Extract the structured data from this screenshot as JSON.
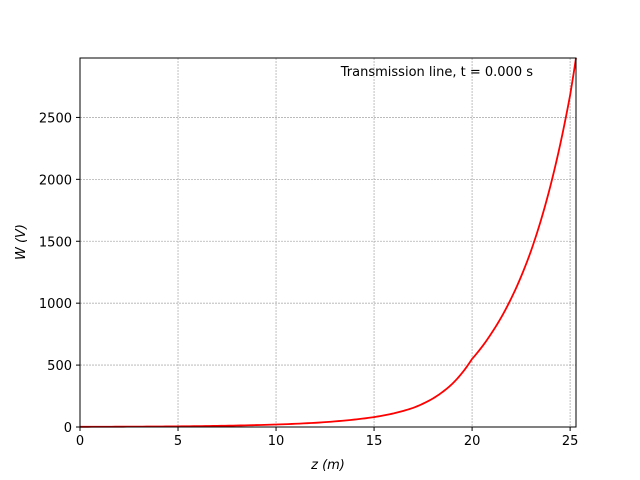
{
  "chart_data": {
    "type": "line",
    "annotation": "Transmission line, t = 0.000 s",
    "xlabel": "z (m)",
    "ylabel": "W (V)",
    "xlim": [
      0,
      25.3
    ],
    "ylim": [
      0,
      2980
    ],
    "xticks": [
      0,
      5,
      10,
      15,
      20,
      25
    ],
    "yticks": [
      0,
      500,
      1000,
      1500,
      2000,
      2500
    ],
    "grid": true,
    "line_color": "#ff0000",
    "series": [
      {
        "x": [
          0,
          2,
          4,
          6,
          8,
          10,
          12,
          14,
          15,
          16,
          17,
          18,
          19,
          20,
          21,
          22,
          23,
          24,
          25,
          25.3
        ],
        "values": [
          1.5,
          2.5,
          4,
          7,
          12,
          20,
          34,
          60,
          80,
          110,
          155,
          230,
          350,
          550,
          760,
          1040,
          1420,
          1950,
          2680,
          2980
        ]
      }
    ]
  }
}
